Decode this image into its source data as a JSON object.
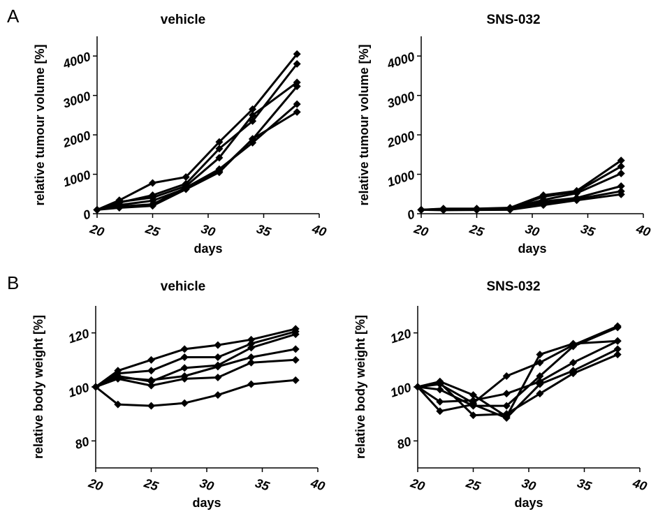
{
  "panel_labels": [
    "A",
    "B"
  ],
  "chart_data": [
    {
      "id": "tumour-vehicle",
      "type": "line",
      "title": "vehicle",
      "xlabel": "days",
      "ylabel": "relative tumour volume [%]",
      "xlim": [
        20,
        40
      ],
      "ylim": [
        0,
        4500
      ],
      "xticks": [
        20,
        25,
        30,
        35,
        40
      ],
      "yticks": [
        0,
        1000,
        2000,
        3000,
        4000
      ],
      "grid": false,
      "x": [
        20,
        22,
        25,
        28,
        31,
        34,
        38
      ],
      "series": [
        {
          "values": [
            100,
            340,
            780,
            930,
            1820,
            2650,
            4050
          ]
        },
        {
          "values": [
            100,
            280,
            470,
            760,
            1650,
            2350,
            3800
          ]
        },
        {
          "values": [
            100,
            300,
            410,
            700,
            1420,
            2500,
            3330
          ]
        },
        {
          "values": [
            100,
            220,
            330,
            640,
            1080,
            1890,
            3230
          ]
        },
        {
          "values": [
            100,
            180,
            240,
            660,
            1130,
            1800,
            2780
          ]
        },
        {
          "values": [
            100,
            150,
            200,
            620,
            1050,
            1900,
            2580
          ]
        }
      ]
    },
    {
      "id": "tumour-sns032",
      "type": "line",
      "title": "SNS-032",
      "xlabel": "days",
      "ylabel": "relative tumour volume [%]",
      "xlim": [
        20,
        40
      ],
      "ylim": [
        0,
        4500
      ],
      "xticks": [
        20,
        25,
        30,
        35,
        40
      ],
      "yticks": [
        0,
        1000,
        2000,
        3000,
        4000
      ],
      "grid": false,
      "x": [
        20,
        22,
        25,
        28,
        31,
        34,
        38
      ],
      "series": [
        {
          "values": [
            100,
            130,
            130,
            150,
            470,
            580,
            1350
          ]
        },
        {
          "values": [
            100,
            120,
            120,
            140,
            430,
            560,
            1200
          ]
        },
        {
          "values": [
            100,
            110,
            115,
            130,
            350,
            520,
            1020
          ]
        },
        {
          "values": [
            100,
            100,
            110,
            120,
            310,
            400,
            700
          ]
        },
        {
          "values": [
            100,
            95,
            100,
            110,
            270,
            370,
            570
          ]
        },
        {
          "values": [
            100,
            90,
            95,
            100,
            220,
            340,
            490
          ]
        }
      ]
    },
    {
      "id": "weight-vehicle",
      "type": "line",
      "title": "vehicle",
      "xlabel": "days",
      "ylabel": "relative body weight  [%]",
      "xlim": [
        20,
        40
      ],
      "ylim": [
        70,
        130
      ],
      "xticks": [
        20,
        25,
        30,
        35,
        40
      ],
      "yticks": [
        80,
        100,
        120
      ],
      "grid": false,
      "x": [
        20,
        22,
        25,
        28,
        31,
        34,
        38
      ],
      "series": [
        {
          "values": [
            100,
            106,
            110,
            114,
            115.5,
            117.5,
            121.5
          ]
        },
        {
          "values": [
            100,
            105,
            106,
            111,
            111,
            116,
            120.5
          ]
        },
        {
          "values": [
            100,
            104,
            102,
            107,
            108,
            114.5,
            119.5
          ]
        },
        {
          "values": [
            100,
            103.5,
            102.5,
            104,
            107.5,
            111,
            114
          ]
        },
        {
          "values": [
            100,
            103,
            100.5,
            103,
            103.5,
            109,
            110
          ]
        },
        {
          "values": [
            100,
            93.5,
            93,
            94,
            97,
            101,
            102.5
          ]
        }
      ]
    },
    {
      "id": "weight-sns032",
      "type": "line",
      "title": "SNS-032",
      "xlabel": "days",
      "ylabel": "relative body weight  [%]",
      "xlim": [
        20,
        40
      ],
      "ylim": [
        70,
        130
      ],
      "xticks": [
        20,
        25,
        30,
        35,
        40
      ],
      "yticks": [
        80,
        100,
        120
      ],
      "grid": false,
      "x": [
        20,
        22,
        25,
        28,
        31,
        34,
        38
      ],
      "series": [
        {
          "values": [
            100,
            102,
            97,
            89,
            112,
            116,
            117
          ]
        },
        {
          "values": [
            100,
            101,
            94,
            104,
            109,
            115.5,
            122.5
          ]
        },
        {
          "values": [
            100,
            99,
            93,
            93,
            104,
            115,
            122
          ]
        },
        {
          "values": [
            100,
            94.5,
            95,
            97.5,
            102,
            109,
            117
          ]
        },
        {
          "values": [
            100,
            91,
            93.5,
            88.5,
            101,
            106,
            114
          ]
        },
        {
          "values": [
            100,
            101.5,
            89.5,
            90,
            97.5,
            105,
            112
          ]
        }
      ]
    }
  ]
}
